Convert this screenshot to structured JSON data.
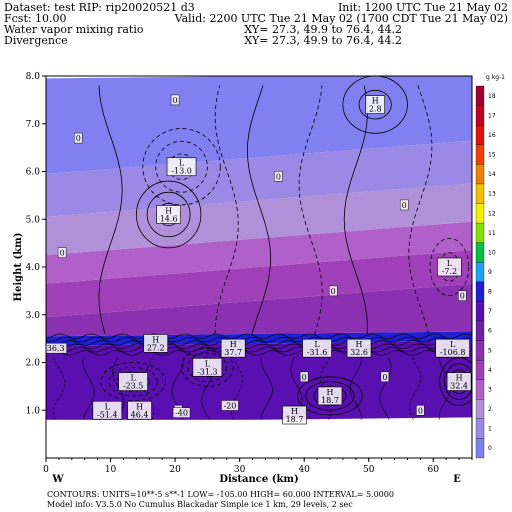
{
  "header": {
    "line1_left": "Dataset: test   RIP: rip20020521 d3",
    "line1_right": "Init: 1200 UTC Tue 21 May 02",
    "line2_left": "Fcst:     10.00",
    "line2_right": "Valid: 2200 UTC Tue 21 May 02 (1700 CDT Tue 21 May 02)",
    "line3_left": "Water vapor mixing ratio",
    "line3_right": "XY=  27.3, 49.9 to  76.4, 44.2",
    "line4_left": "Divergence",
    "line4_right": "XY=  27.3, 49.9 to  76.4, 44.2"
  },
  "footer": {
    "line1": "CONTOURS:  UNITS=10**-5 s**-1   LOW= -105.00     HIGH=  60.000     INTERVAL=   5.0000",
    "line2": "Model info: V3.5.0 No Cumulus Blackadar  Simple ice     1 km,   29 levels,    2 sec"
  },
  "chart_data": {
    "type": "heatmap",
    "title": "Water vapor mixing ratio",
    "overlay": "Divergence",
    "xlabel": "Distance (km)",
    "ylabel": "Height (km)",
    "xlim": [
      0,
      66
    ],
    "ylim": [
      0,
      8
    ],
    "xticks": [
      "0",
      "10",
      "20",
      "30",
      "40",
      "50",
      "60"
    ],
    "xtick_values": [
      0,
      10,
      20,
      30,
      40,
      50,
      60
    ],
    "yticks": [
      "1.0",
      "2.0",
      "3.0",
      "4.0",
      "5.0",
      "6.0",
      "7.0",
      "8.0"
    ],
    "ytick_values": [
      1,
      2,
      3,
      4,
      5,
      6,
      7,
      8
    ],
    "left_end_label": "W",
    "right_end_label": "E",
    "colorbar_units": "g kg-1",
    "colorbar_levels": [
      "0",
      "1",
      "2",
      "3",
      "4",
      "5",
      "6",
      "7",
      "8",
      "9",
      "10",
      "11",
      "12",
      "13",
      "14",
      "15",
      "16",
      "17",
      "18"
    ],
    "colorbar_colors": [
      "#8080f0",
      "#9a8ae6",
      "#b090d8",
      "#b060c8",
      "#a040b8",
      "#8a30b0",
      "#7020a8",
      "#5a10b0",
      "#2020d0",
      "#20a0f0",
      "#00c040",
      "#80e000",
      "#f0f000",
      "#f0c000",
      "#f08000",
      "#f04000",
      "#e01010",
      "#c00020",
      "#a00030"
    ],
    "mixing_ratio_bands": [
      {
        "bottom": 0.8,
        "top": 2.4,
        "value_g_kg": 7
      },
      {
        "bottom": 2.4,
        "top": 2.6,
        "value_g_kg": 8
      },
      {
        "bottom": 2.6,
        "top": 3.3,
        "value_g_kg": 5
      },
      {
        "bottom": 3.3,
        "top": 4.0,
        "value_g_kg": 4
      },
      {
        "bottom": 4.0,
        "top": 4.6,
        "value_g_kg": 3
      },
      {
        "bottom": 4.6,
        "top": 5.4,
        "value_g_kg": 2
      },
      {
        "bottom": 5.4,
        "top": 6.3,
        "value_g_kg": 1
      },
      {
        "bottom": 6.3,
        "top": 8.0,
        "value_g_kg": 0
      }
    ],
    "terrain_top_km": 0.8,
    "extrema_labels": [
      {
        "kind": "H",
        "value": "2.8",
        "x": 51.0,
        "y": 7.4
      },
      {
        "kind": "L",
        "value": "-13.0",
        "x": 21.0,
        "y": 6.1
      },
      {
        "kind": "H",
        "value": "14.6",
        "x": 19.0,
        "y": 5.1
      },
      {
        "kind": "L",
        "value": "-7.2",
        "x": 62.5,
        "y": 4.0
      },
      {
        "kind": "H",
        "value": "27.2",
        "x": 17.0,
        "y": 2.4
      },
      {
        "kind": "H",
        "value": "37.7",
        "x": 29.0,
        "y": 2.3
      },
      {
        "kind": "L",
        "value": "-31.6",
        "x": 42.0,
        "y": 2.3
      },
      {
        "kind": "H",
        "value": "32.6",
        "x": 48.5,
        "y": 2.3
      },
      {
        "kind": "L",
        "value": "-106.8",
        "x": 63.0,
        "y": 2.3
      },
      {
        "kind": "L",
        "value": "-31.3",
        "x": 25.0,
        "y": 1.9
      },
      {
        "kind": "L",
        "value": "-23.5",
        "x": 13.5,
        "y": 1.6
      },
      {
        "kind": "H",
        "value": "32.4",
        "x": 64.0,
        "y": 1.6
      },
      {
        "kind": "H",
        "value": "18.7",
        "x": 44.0,
        "y": 1.3
      },
      {
        "kind": "L",
        "value": "-51.4",
        "x": 9.5,
        "y": 1.0
      },
      {
        "kind": "H",
        "value": "46.4",
        "x": 14.5,
        "y": 1.0
      },
      {
        "kind": "H",
        "value": "18.7",
        "x": 38.5,
        "y": 0.9
      }
    ],
    "plain_labels": [
      {
        "text": "0",
        "x": 20.0,
        "y": 7.5
      },
      {
        "text": "0",
        "x": 5.0,
        "y": 6.7
      },
      {
        "text": "0",
        "x": 36.0,
        "y": 5.9
      },
      {
        "text": "0",
        "x": 55.5,
        "y": 5.3
      },
      {
        "text": "0",
        "x": 2.5,
        "y": 4.3
      },
      {
        "text": "0",
        "x": 44.5,
        "y": 3.5
      },
      {
        "text": "0",
        "x": 64.5,
        "y": 3.4
      },
      {
        "text": "36.3",
        "x": 1.5,
        "y": 2.3
      },
      {
        "text": "0",
        "x": 40.0,
        "y": 1.7
      },
      {
        "text": "0",
        "x": 52.5,
        "y": 1.7
      },
      {
        "text": "0",
        "x": 20.5,
        "y": 1.0
      },
      {
        "text": "-20",
        "x": 28.5,
        "y": 1.1
      },
      {
        "text": "-40",
        "x": 21.0,
        "y": 0.95
      },
      {
        "text": "0",
        "x": 58.0,
        "y": 1.0
      }
    ]
  }
}
